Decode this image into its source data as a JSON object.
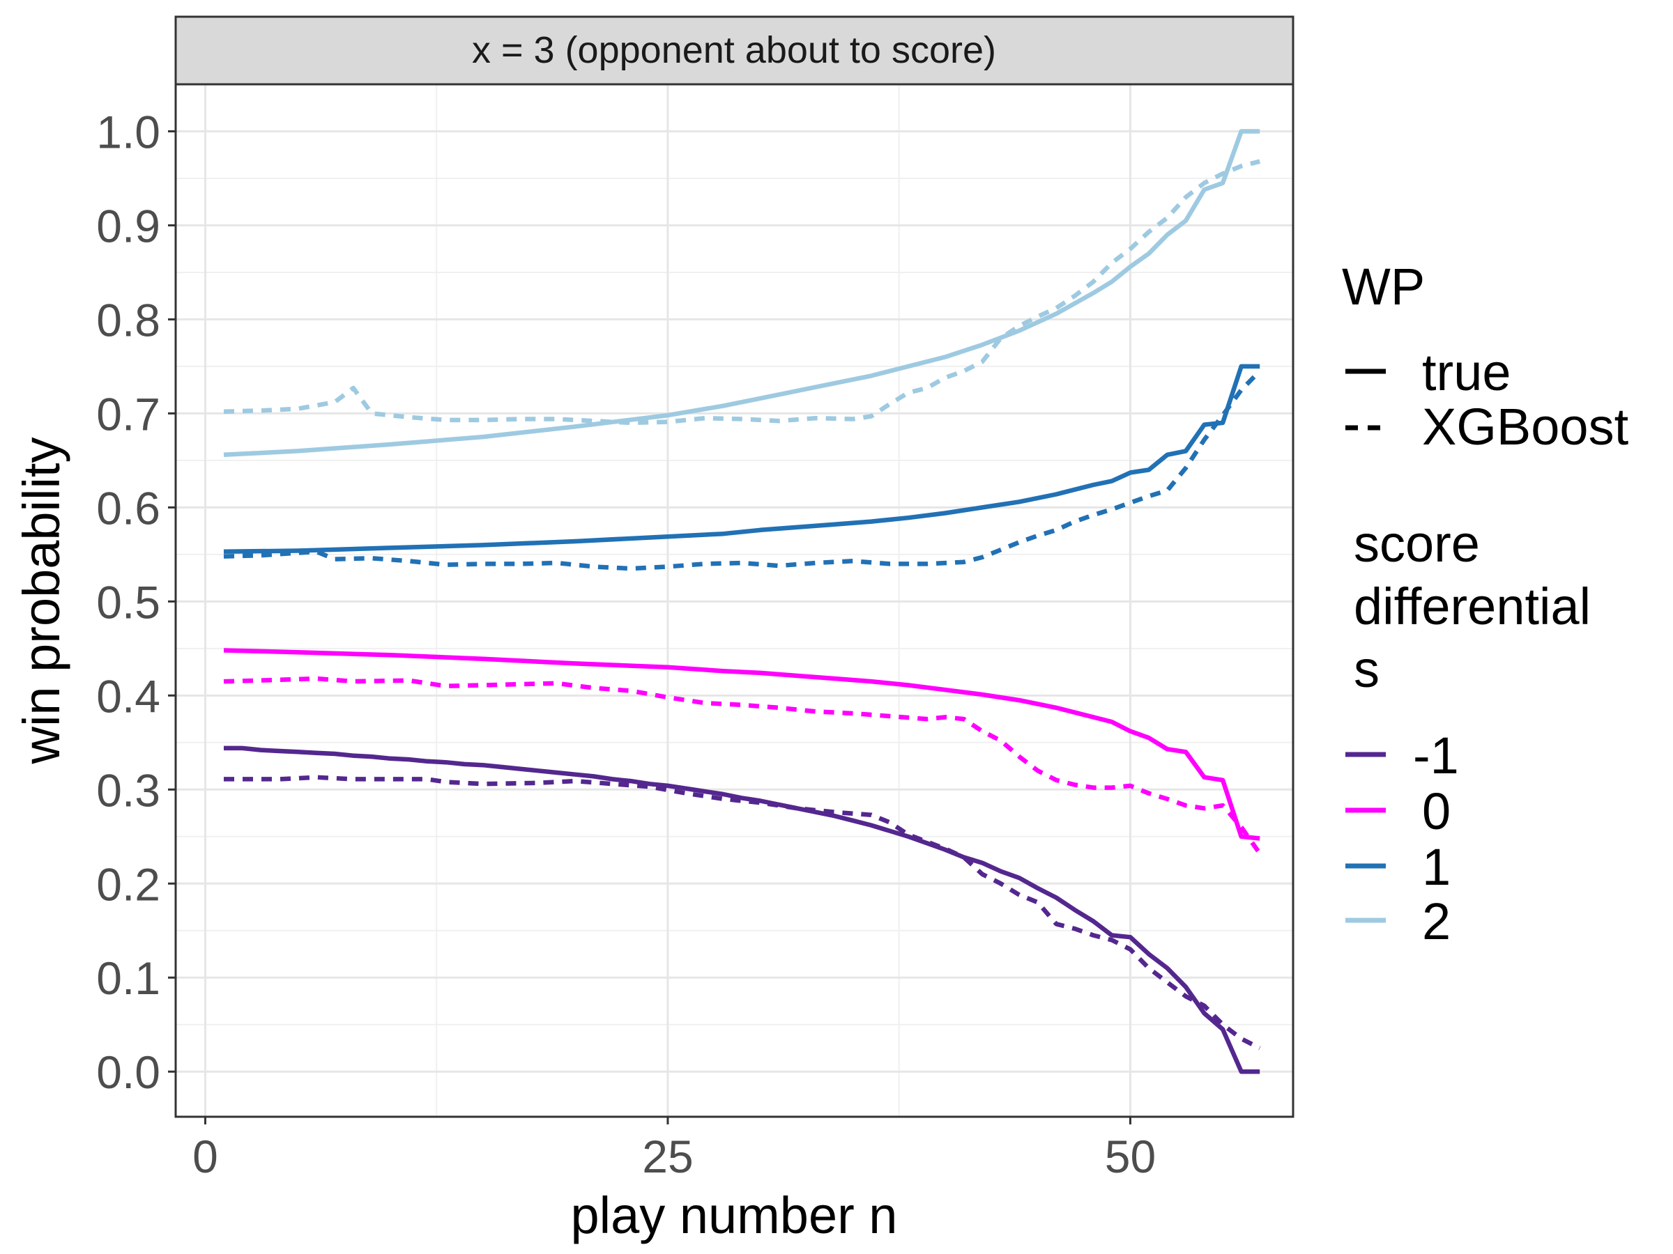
{
  "chart_data": {
    "type": "line",
    "facet_label": "x = 3 (opponent about to score)",
    "xlabel": "play number n",
    "ylabel": "win probability",
    "xlim": [
      -1.6,
      58.8
    ],
    "ylim": [
      -0.048,
      1.05
    ],
    "x_ticks": [
      0,
      25,
      50
    ],
    "y_ticks": [
      "0.0",
      "0.1",
      "0.2",
      "0.3",
      "0.4",
      "0.5",
      "0.6",
      "0.7",
      "0.8",
      "0.9",
      "1.0"
    ],
    "grid": true,
    "legend_position": "right",
    "legend": {
      "linetype_title": "WP",
      "linetype_entries": [
        {
          "label": "true",
          "dash": "solid"
        },
        {
          "label": "XGBoost",
          "dash": "dashed"
        }
      ],
      "color_title_lines": [
        "score",
        "differential",
        "s"
      ],
      "color_entries": [
        {
          "label": "-1",
          "color": "#54278f"
        },
        {
          "label": "0",
          "color": "#ff00ff"
        },
        {
          "label": "1",
          "color": "#2171b5"
        },
        {
          "label": "2",
          "color": "#9ecae1"
        }
      ]
    },
    "series": [
      {
        "s": "-1",
        "wp": "true",
        "color": "#54278f",
        "dash": "solid",
        "points": [
          [
            1,
            0.344
          ],
          [
            2,
            0.344
          ],
          [
            3,
            0.342
          ],
          [
            4,
            0.341
          ],
          [
            5,
            0.34
          ],
          [
            6,
            0.339
          ],
          [
            7,
            0.338
          ],
          [
            8,
            0.336
          ],
          [
            9,
            0.335
          ],
          [
            10,
            0.333
          ],
          [
            11,
            0.332
          ],
          [
            12,
            0.33
          ],
          [
            13,
            0.329
          ],
          [
            14,
            0.327
          ],
          [
            15,
            0.326
          ],
          [
            16,
            0.324
          ],
          [
            17,
            0.322
          ],
          [
            18,
            0.32
          ],
          [
            19,
            0.318
          ],
          [
            20,
            0.316
          ],
          [
            21,
            0.314
          ],
          [
            22,
            0.311
          ],
          [
            23,
            0.309
          ],
          [
            24,
            0.306
          ],
          [
            25,
            0.304
          ],
          [
            26,
            0.301
          ],
          [
            27,
            0.298
          ],
          [
            28,
            0.295
          ],
          [
            29,
            0.291
          ],
          [
            30,
            0.288
          ],
          [
            31,
            0.284
          ],
          [
            32,
            0.28
          ],
          [
            33,
            0.276
          ],
          [
            34,
            0.272
          ],
          [
            35,
            0.267
          ],
          [
            36,
            0.262
          ],
          [
            37,
            0.256
          ],
          [
            38,
            0.25
          ],
          [
            39,
            0.243
          ],
          [
            40,
            0.236
          ],
          [
            41,
            0.228
          ],
          [
            42,
            0.222
          ],
          [
            43,
            0.213
          ],
          [
            44,
            0.206
          ],
          [
            45,
            0.195
          ],
          [
            46,
            0.185
          ],
          [
            47,
            0.172
          ],
          [
            48,
            0.16
          ],
          [
            49,
            0.145
          ],
          [
            50,
            0.143
          ],
          [
            51,
            0.125
          ],
          [
            52,
            0.11
          ],
          [
            53,
            0.09
          ],
          [
            54,
            0.062
          ],
          [
            55,
            0.045
          ],
          [
            56,
            0.0
          ],
          [
            57,
            0.0
          ]
        ]
      },
      {
        "s": "-1",
        "wp": "XGBoost",
        "color": "#54278f",
        "dash": "dashed",
        "points": [
          [
            1,
            0.311
          ],
          [
            4,
            0.311
          ],
          [
            6,
            0.313
          ],
          [
            8,
            0.311
          ],
          [
            12,
            0.311
          ],
          [
            13,
            0.308
          ],
          [
            15,
            0.306
          ],
          [
            18,
            0.307
          ],
          [
            20,
            0.309
          ],
          [
            22,
            0.306
          ],
          [
            24,
            0.303
          ],
          [
            26,
            0.296
          ],
          [
            28,
            0.29
          ],
          [
            30,
            0.286
          ],
          [
            32,
            0.28
          ],
          [
            34,
            0.276
          ],
          [
            36,
            0.273
          ],
          [
            37,
            0.265
          ],
          [
            38,
            0.252
          ],
          [
            40,
            0.237
          ],
          [
            41,
            0.228
          ],
          [
            42,
            0.21
          ],
          [
            43,
            0.2
          ],
          [
            44,
            0.188
          ],
          [
            45,
            0.18
          ],
          [
            46,
            0.157
          ],
          [
            47,
            0.152
          ],
          [
            48,
            0.145
          ],
          [
            49,
            0.14
          ],
          [
            50,
            0.13
          ],
          [
            51,
            0.11
          ],
          [
            52,
            0.095
          ],
          [
            53,
            0.08
          ],
          [
            54,
            0.07
          ],
          [
            55,
            0.05
          ],
          [
            56,
            0.035
          ],
          [
            57,
            0.025
          ]
        ]
      },
      {
        "s": "0",
        "wp": "true",
        "color": "#ff00ff",
        "dash": "solid",
        "points": [
          [
            1,
            0.448
          ],
          [
            5,
            0.446
          ],
          [
            10,
            0.443
          ],
          [
            15,
            0.439
          ],
          [
            20,
            0.434
          ],
          [
            25,
            0.43
          ],
          [
            28,
            0.426
          ],
          [
            30,
            0.424
          ],
          [
            32,
            0.421
          ],
          [
            34,
            0.418
          ],
          [
            36,
            0.415
          ],
          [
            38,
            0.411
          ],
          [
            40,
            0.406
          ],
          [
            42,
            0.401
          ],
          [
            44,
            0.395
          ],
          [
            46,
            0.387
          ],
          [
            48,
            0.377
          ],
          [
            49,
            0.372
          ],
          [
            50,
            0.362
          ],
          [
            51,
            0.355
          ],
          [
            52,
            0.343
          ],
          [
            53,
            0.34
          ],
          [
            54,
            0.313
          ],
          [
            55,
            0.31
          ],
          [
            56,
            0.25
          ],
          [
            57,
            0.248
          ]
        ]
      },
      {
        "s": "0",
        "wp": "XGBoost",
        "color": "#ff00ff",
        "dash": "dashed",
        "points": [
          [
            1,
            0.415
          ],
          [
            3,
            0.416
          ],
          [
            6,
            0.418
          ],
          [
            8,
            0.415
          ],
          [
            11,
            0.416
          ],
          [
            13,
            0.41
          ],
          [
            15,
            0.411
          ],
          [
            17,
            0.412
          ],
          [
            19,
            0.413
          ],
          [
            21,
            0.408
          ],
          [
            23,
            0.405
          ],
          [
            25,
            0.398
          ],
          [
            27,
            0.392
          ],
          [
            29,
            0.39
          ],
          [
            31,
            0.387
          ],
          [
            33,
            0.383
          ],
          [
            35,
            0.381
          ],
          [
            37,
            0.378
          ],
          [
            39,
            0.375
          ],
          [
            40,
            0.377
          ],
          [
            41,
            0.375
          ],
          [
            42,
            0.362
          ],
          [
            43,
            0.352
          ],
          [
            44,
            0.335
          ],
          [
            45,
            0.32
          ],
          [
            46,
            0.31
          ],
          [
            47,
            0.305
          ],
          [
            48,
            0.302
          ],
          [
            49,
            0.302
          ],
          [
            50,
            0.304
          ],
          [
            51,
            0.296
          ],
          [
            52,
            0.29
          ],
          [
            53,
            0.283
          ],
          [
            54,
            0.28
          ],
          [
            55,
            0.283
          ],
          [
            56,
            0.26
          ],
          [
            57,
            0.232
          ]
        ]
      },
      {
        "s": "1",
        "wp": "true",
        "color": "#2171b5",
        "dash": "solid",
        "points": [
          [
            1,
            0.553
          ],
          [
            5,
            0.554
          ],
          [
            10,
            0.557
          ],
          [
            15,
            0.56
          ],
          [
            20,
            0.564
          ],
          [
            25,
            0.569
          ],
          [
            28,
            0.572
          ],
          [
            30,
            0.576
          ],
          [
            32,
            0.579
          ],
          [
            34,
            0.582
          ],
          [
            36,
            0.585
          ],
          [
            38,
            0.589
          ],
          [
            40,
            0.594
          ],
          [
            42,
            0.6
          ],
          [
            44,
            0.606
          ],
          [
            46,
            0.614
          ],
          [
            48,
            0.624
          ],
          [
            49,
            0.628
          ],
          [
            50,
            0.637
          ],
          [
            51,
            0.64
          ],
          [
            52,
            0.656
          ],
          [
            53,
            0.66
          ],
          [
            54,
            0.688
          ],
          [
            55,
            0.69
          ],
          [
            56,
            0.75
          ],
          [
            57,
            0.75
          ]
        ]
      },
      {
        "s": "1",
        "wp": "XGBoost",
        "color": "#2171b5",
        "dash": "dashed",
        "points": [
          [
            1,
            0.548
          ],
          [
            3,
            0.549
          ],
          [
            6,
            0.553
          ],
          [
            7,
            0.545
          ],
          [
            9,
            0.546
          ],
          [
            11,
            0.543
          ],
          [
            13,
            0.539
          ],
          [
            15,
            0.54
          ],
          [
            17,
            0.54
          ],
          [
            19,
            0.541
          ],
          [
            21,
            0.537
          ],
          [
            23,
            0.535
          ],
          [
            25,
            0.537
          ],
          [
            27,
            0.54
          ],
          [
            29,
            0.541
          ],
          [
            31,
            0.538
          ],
          [
            33,
            0.541
          ],
          [
            35,
            0.543
          ],
          [
            37,
            0.54
          ],
          [
            39,
            0.54
          ],
          [
            41,
            0.542
          ],
          [
            42,
            0.547
          ],
          [
            43,
            0.555
          ],
          [
            44,
            0.563
          ],
          [
            45,
            0.57
          ],
          [
            46,
            0.576
          ],
          [
            47,
            0.585
          ],
          [
            48,
            0.592
          ],
          [
            49,
            0.598
          ],
          [
            50,
            0.605
          ],
          [
            51,
            0.612
          ],
          [
            52,
            0.618
          ],
          [
            53,
            0.642
          ],
          [
            54,
            0.672
          ],
          [
            55,
            0.698
          ],
          [
            56,
            0.725
          ],
          [
            57,
            0.745
          ]
        ]
      },
      {
        "s": "2",
        "wp": "true",
        "color": "#9ecae1",
        "dash": "solid",
        "points": [
          [
            1,
            0.656
          ],
          [
            5,
            0.66
          ],
          [
            10,
            0.667
          ],
          [
            15,
            0.675
          ],
          [
            20,
            0.686
          ],
          [
            25,
            0.698
          ],
          [
            28,
            0.708
          ],
          [
            30,
            0.716
          ],
          [
            32,
            0.724
          ],
          [
            34,
            0.732
          ],
          [
            36,
            0.74
          ],
          [
            38,
            0.75
          ],
          [
            40,
            0.76
          ],
          [
            42,
            0.773
          ],
          [
            44,
            0.788
          ],
          [
            46,
            0.806
          ],
          [
            48,
            0.828
          ],
          [
            49,
            0.84
          ],
          [
            50,
            0.856
          ],
          [
            51,
            0.87
          ],
          [
            52,
            0.89
          ],
          [
            53,
            0.905
          ],
          [
            54,
            0.938
          ],
          [
            55,
            0.945
          ],
          [
            56,
            1.0
          ],
          [
            57,
            1.0
          ]
        ]
      },
      {
        "s": "2",
        "wp": "XGBoost",
        "color": "#9ecae1",
        "dash": "dashed",
        "points": [
          [
            1,
            0.702
          ],
          [
            3,
            0.703
          ],
          [
            5,
            0.705
          ],
          [
            7,
            0.712
          ],
          [
            8,
            0.727
          ],
          [
            9,
            0.7
          ],
          [
            11,
            0.696
          ],
          [
            13,
            0.693
          ],
          [
            15,
            0.693
          ],
          [
            17,
            0.694
          ],
          [
            19,
            0.694
          ],
          [
            21,
            0.692
          ],
          [
            23,
            0.69
          ],
          [
            25,
            0.691
          ],
          [
            27,
            0.695
          ],
          [
            29,
            0.694
          ],
          [
            31,
            0.692
          ],
          [
            33,
            0.695
          ],
          [
            35,
            0.694
          ],
          [
            36,
            0.697
          ],
          [
            37,
            0.71
          ],
          [
            38,
            0.722
          ],
          [
            39,
            0.727
          ],
          [
            40,
            0.738
          ],
          [
            41,
            0.745
          ],
          [
            42,
            0.755
          ],
          [
            43,
            0.78
          ],
          [
            44,
            0.793
          ],
          [
            45,
            0.803
          ],
          [
            46,
            0.812
          ],
          [
            47,
            0.825
          ],
          [
            48,
            0.84
          ],
          [
            49,
            0.86
          ],
          [
            50,
            0.875
          ],
          [
            51,
            0.893
          ],
          [
            52,
            0.908
          ],
          [
            53,
            0.93
          ],
          [
            54,
            0.945
          ],
          [
            55,
            0.955
          ],
          [
            56,
            0.963
          ],
          [
            57,
            0.968
          ]
        ]
      }
    ]
  }
}
